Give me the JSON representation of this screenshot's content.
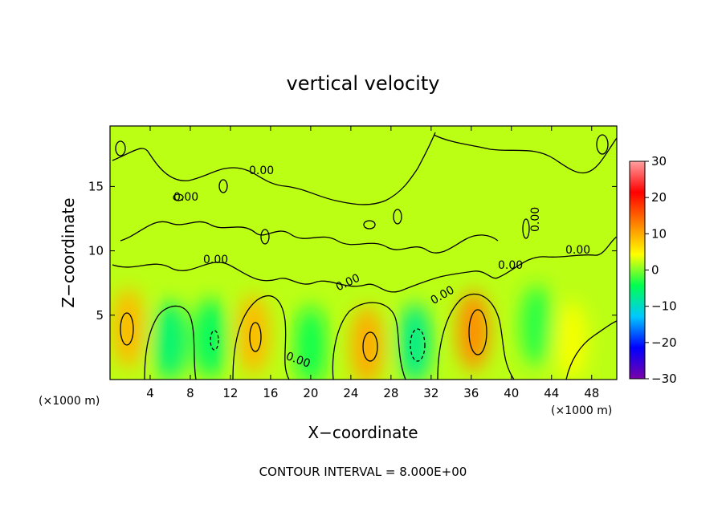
{
  "chart_data": {
    "type": "heatmap",
    "title": "vertical velocity",
    "xlabel": "X−coordinate",
    "ylabel": "Z−coordinate",
    "x_unit_left": "(×1000 m)",
    "x_unit_right": "(×1000 m)",
    "xlim": [
      0,
      50.5
    ],
    "ylim": [
      0,
      19.7
    ],
    "x_ticks": [
      "4",
      "8",
      "12",
      "16",
      "20",
      "24",
      "28",
      "32",
      "36",
      "40",
      "44",
      "48"
    ],
    "y_ticks": [
      "5",
      "10",
      "15"
    ],
    "colorbar": {
      "range": [
        -30,
        30
      ],
      "ticks": [
        "30",
        "20",
        "10",
        "0",
        "−10",
        "−20",
        "−30"
      ],
      "colors": [
        "#7a00a8",
        "#0000ff",
        "#00c8ff",
        "#00ff50",
        "#ffff00",
        "#ff8000",
        "#ff0000",
        "#ffa0a0"
      ]
    },
    "background_value": 2,
    "cells": [
      {
        "x": 1.8,
        "z": 4.0,
        "value": 9
      },
      {
        "x": 14.3,
        "z": 3.5,
        "value": 9
      },
      {
        "x": 25.6,
        "z": 2.6,
        "value": 10
      },
      {
        "x": 36.2,
        "z": 3.8,
        "value": 12
      },
      {
        "x": 6.0,
        "z": 3.0,
        "value": -6
      },
      {
        "x": 10.0,
        "z": 3.2,
        "value": -5
      },
      {
        "x": 20.0,
        "z": 2.6,
        "value": -4
      },
      {
        "x": 30.4,
        "z": 2.8,
        "value": -7
      },
      {
        "x": 42.5,
        "z": 4.2,
        "value": -3
      },
      {
        "x": 46.0,
        "z": 3.0,
        "value": 4
      }
    ],
    "contour_labels": [
      "0.00",
      "0.00",
      "0.00",
      "0.00",
      "0.00",
      "0.00",
      "0.00",
      "0.00",
      "0.00"
    ],
    "contour_interval_text": "CONTOUR INTERVAL = 8.000E+00"
  }
}
